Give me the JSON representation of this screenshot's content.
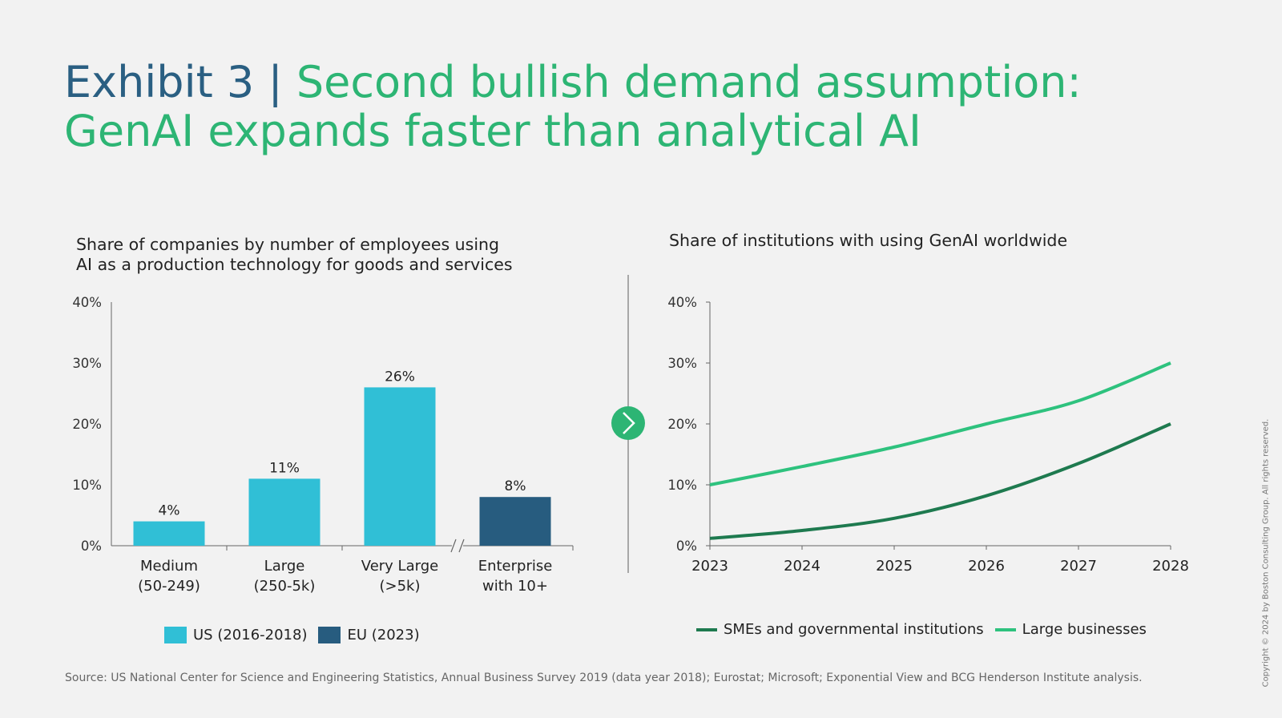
{
  "title": {
    "prefix": "Exhibit 3",
    "separator": "|",
    "line1": "Second bullish demand assumption:",
    "line2": "GenAI expands faster than analytical AI"
  },
  "left_chart_title": {
    "line1": "Share of companies by number of employees using",
    "line2": "AI as a production technology for goods and services"
  },
  "right_chart_title": "Share of institutions with using GenAI worldwide",
  "left_legend": [
    {
      "label": "US (2016-2018)",
      "color": "#30bfd6"
    },
    {
      "label": "EU (2023)",
      "color": "#275c7f"
    }
  ],
  "right_legend": [
    {
      "label": "SMEs and governmental institutions",
      "color": "#1e7a4f"
    },
    {
      "label": "Large businesses",
      "color": "#2ec27e"
    }
  ],
  "source": "Source: US National Center for Science and Engineering Statistics, Annual Business Survey 2019 (data year 2018); Eurostat; Microsoft; Exponential View and BCG Henderson Institute analysis.",
  "copyright": "Copyright © 2024 by Boston Consulting Group. All rights reserved.",
  "transition_icon": "chevron-right-circle-icon",
  "chart_data": [
    {
      "type": "bar",
      "categories": [
        [
          "Medium",
          "(50-249)"
        ],
        [
          "Large",
          "(250-5k)"
        ],
        [
          "Very Large",
          "(>5k)"
        ],
        [
          "Enterprise",
          "with 10+"
        ]
      ],
      "values": [
        4,
        11,
        26,
        8
      ],
      "data_labels": [
        "4%",
        "11%",
        "26%",
        "8%"
      ],
      "series_index": [
        0,
        0,
        0,
        1
      ],
      "ylim": [
        0,
        40
      ],
      "yticks": [
        0,
        10,
        20,
        30,
        40
      ],
      "ytick_labels": [
        "0%",
        "10%",
        "20%",
        "30%",
        "40%"
      ],
      "axis_break": "between category 3 and 4",
      "grid": false
    },
    {
      "type": "line",
      "x": [
        "2023",
        "2024",
        "2025",
        "2026",
        "2027",
        "2028"
      ],
      "series": [
        {
          "name": "SMEs and governmental institutions",
          "values": [
            1.2,
            2.5,
            4.5,
            8.2,
            13.5,
            20
          ],
          "color": "#1e7a4f"
        },
        {
          "name": "Large businesses",
          "values": [
            10,
            13,
            16.2,
            20,
            23.8,
            30
          ],
          "color": "#2ec27e"
        }
      ],
      "ylim": [
        0,
        40
      ],
      "yticks": [
        0,
        10,
        20,
        30,
        40
      ],
      "ytick_labels": [
        "0%",
        "10%",
        "20%",
        "30%",
        "40%"
      ],
      "grid": false,
      "legend_position": "bottom"
    }
  ]
}
